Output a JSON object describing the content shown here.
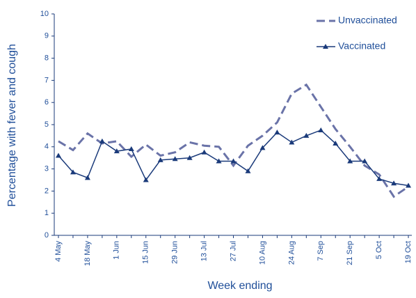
{
  "chart_data": {
    "type": "line",
    "x_label": "Week ending",
    "y_label": "Percentage with fever and cough",
    "categories": [
      "4 May",
      null,
      "18 May",
      null,
      "1 Jun",
      null,
      "15 Jun",
      null,
      "29 Jun",
      null,
      "13 Jul",
      null,
      "27 Jul",
      null,
      "10 Aug",
      null,
      "24 Aug",
      null,
      "7 Sep",
      null,
      "21 Sep",
      null,
      "5 Oct",
      null,
      "19 Oct"
    ],
    "series": [
      {
        "name": "Unvaccinated",
        "color": "#6a73a8",
        "dashed": true,
        "values": [
          4.25,
          3.85,
          4.6,
          4.15,
          4.25,
          3.55,
          4.1,
          3.6,
          3.75,
          4.2,
          4.05,
          4.0,
          3.15,
          4.05,
          4.5,
          5.1,
          6.4,
          6.8,
          5.8,
          4.8,
          4.0,
          3.15,
          2.75,
          1.75,
          2.2
        ]
      },
      {
        "name": "Vaccinated",
        "color": "#1a3a7a",
        "dashed": false,
        "values": [
          3.6,
          2.85,
          2.6,
          4.25,
          3.8,
          3.9,
          2.5,
          3.4,
          3.45,
          3.5,
          3.75,
          3.35,
          3.35,
          2.9,
          3.95,
          4.65,
          4.2,
          4.5,
          4.75,
          4.15,
          3.35,
          3.35,
          2.55,
          2.35,
          2.25
        ]
      }
    ],
    "ylim": [
      0,
      10
    ],
    "yticks": [
      0,
      1,
      2,
      3,
      4,
      5,
      6,
      7,
      8,
      9,
      10
    ]
  }
}
